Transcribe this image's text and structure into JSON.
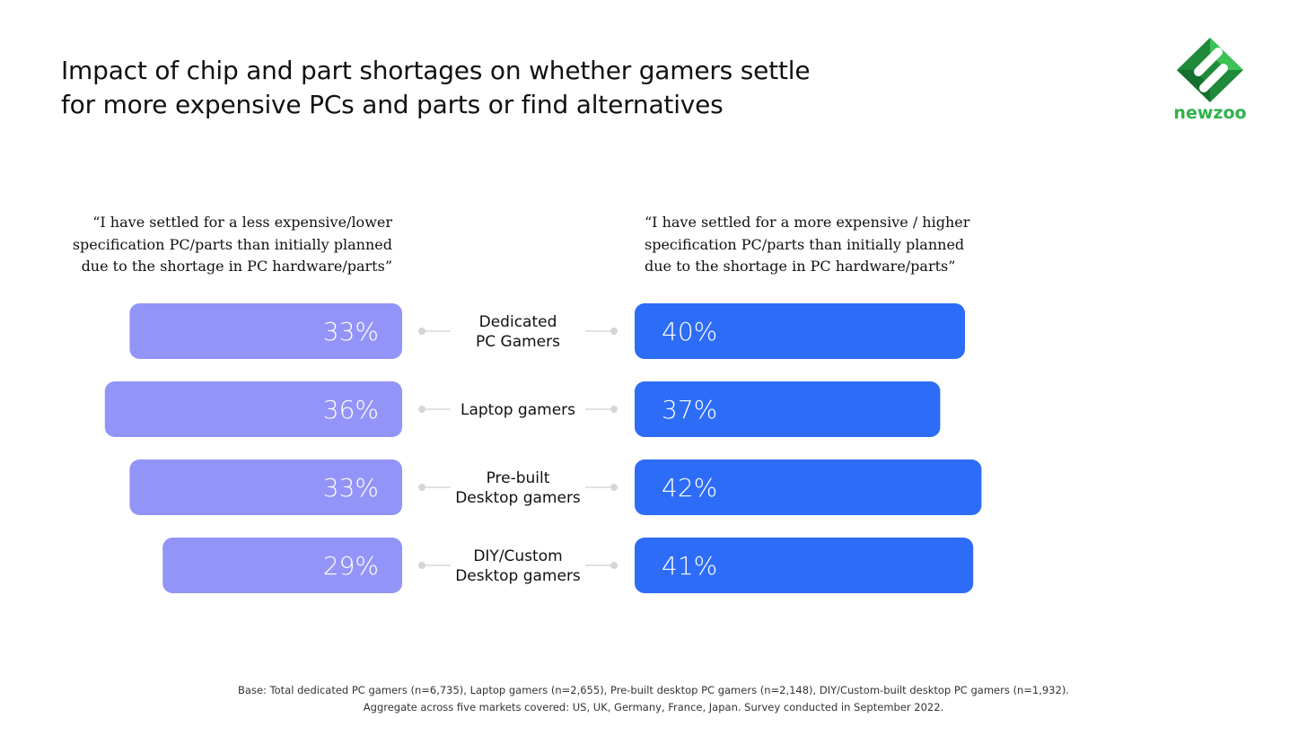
{
  "title_lines": [
    "Impact of chip and part shortages on whether gamers settle",
    "for more expensive PCs and parts or find alternatives"
  ],
  "logo": {
    "text": "newzoo",
    "color": "#2db34a"
  },
  "chart_data": {
    "type": "bar",
    "orientation": "horizontal",
    "layout": "diverging",
    "categories": [
      "Dedicated PC Gamers",
      "Laptop gamers",
      "Pre-built Desktop gamers",
      "DIY/Custom Desktop gamers"
    ],
    "category_label_lines": [
      [
        "Dedicated",
        "PC Gamers"
      ],
      [
        "Laptop gamers"
      ],
      [
        "Pre-built",
        "Desktop gamers"
      ],
      [
        "DIY/Custom",
        "Desktop gamers"
      ]
    ],
    "series": [
      {
        "label_lines": [
          "“I have settled for a less expensive/lower",
          "specification PC/parts than initially planned",
          "due to the shortage in PC hardware/parts”"
        ],
        "values": [
          33,
          36,
          33,
          29
        ],
        "value_labels": [
          "33%",
          "36%",
          "33%",
          "29%"
        ],
        "color": "#9394f7",
        "side": "left"
      },
      {
        "label_lines": [
          "“I have settled for a more expensive / higher",
          "specification PC/parts than initially planned",
          "due to the shortage in PC hardware/parts”"
        ],
        "values": [
          40,
          37,
          42,
          41
        ],
        "value_labels": [
          "40%",
          "37%",
          "42%",
          "41%"
        ],
        "color": "#2d6cf6",
        "side": "right"
      }
    ],
    "unit": "%",
    "grid": false
  },
  "footnote_lines": [
    "Base: Total dedicated PC gamers (n=6,735), Laptop gamers (n=2,655), Pre-built desktop PC gamers (n=2,148), DIY/Custom-built desktop PC gamers (n=1,932).",
    "Aggregate across five markets covered: US, UK, Germany, France, Japan. Survey conducted in September 2022."
  ]
}
